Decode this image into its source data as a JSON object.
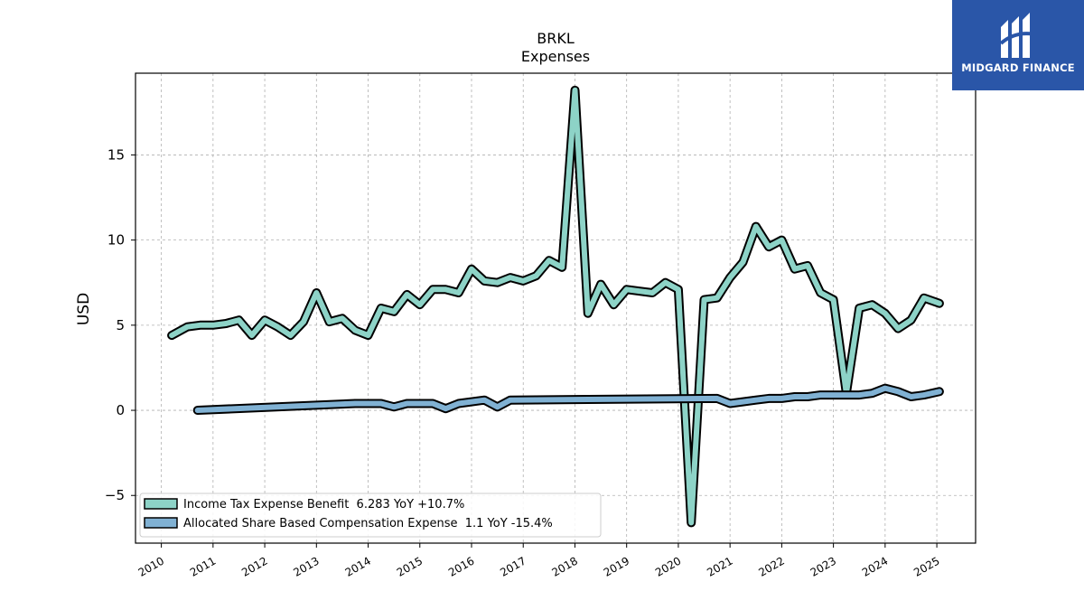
{
  "logo": {
    "text": "MIDGARD FINANCE"
  },
  "colors": {
    "income_tax": "#8dd3c7",
    "share_comp": "#80b1d3",
    "outline": "#000000",
    "grid": "#b0b0b0",
    "logo_bg": "#2a56a8"
  },
  "chart_data": {
    "type": "line",
    "title": "BRKL",
    "subtitle": "Expenses",
    "ylabel": "USD",
    "xlim": [
      2009.5,
      2025.75
    ],
    "ylim": [
      -7.8,
      19.8
    ],
    "yticks": [
      -5,
      0,
      5,
      10,
      15
    ],
    "xticks": [
      2010,
      2011,
      2012,
      2013,
      2014,
      2015,
      2016,
      2017,
      2018,
      2019,
      2020,
      2021,
      2022,
      2023,
      2024,
      2025
    ],
    "grid": true,
    "legend_position": "lower-left",
    "series": [
      {
        "name": "Income Tax Expense Benefit  6.283 YoY +10.7%",
        "x": [
          2010.2,
          2010.5,
          2010.75,
          2011.0,
          2011.25,
          2011.5,
          2011.75,
          2012.0,
          2012.25,
          2012.5,
          2012.75,
          2013.0,
          2013.25,
          2013.5,
          2013.75,
          2014.0,
          2014.25,
          2014.5,
          2014.75,
          2015.0,
          2015.25,
          2015.5,
          2015.75,
          2016.0,
          2016.25,
          2016.5,
          2016.75,
          2017.0,
          2017.25,
          2017.5,
          2017.75,
          2018.0,
          2018.25,
          2018.5,
          2018.75,
          2019.0,
          2019.25,
          2019.5,
          2019.75,
          2020.0,
          2020.25,
          2020.5,
          2020.75,
          2021.0,
          2021.25,
          2021.5,
          2021.75,
          2022.0,
          2022.25,
          2022.5,
          2022.75,
          2023.0,
          2023.25,
          2023.5,
          2023.75,
          2024.0,
          2024.25,
          2024.5,
          2024.75,
          2025.05
        ],
        "values": [
          4.4,
          4.9,
          5.0,
          5.0,
          5.1,
          5.3,
          4.4,
          5.3,
          4.9,
          4.4,
          5.2,
          6.9,
          5.2,
          5.4,
          4.7,
          4.4,
          6.0,
          5.8,
          6.8,
          6.2,
          7.1,
          7.1,
          6.9,
          8.3,
          7.6,
          7.5,
          7.8,
          7.6,
          7.9,
          8.8,
          8.4,
          18.8,
          5.7,
          7.4,
          6.2,
          7.1,
          7.0,
          6.9,
          7.5,
          7.1,
          -6.6,
          6.5,
          6.6,
          7.8,
          8.7,
          10.8,
          9.6,
          10.0,
          8.3,
          8.5,
          6.9,
          6.5,
          1.0,
          6.0,
          6.2,
          5.7,
          4.8,
          5.3,
          6.6,
          6.283
        ]
      },
      {
        "name": "Allocated Share Based Compensation Expense  1.1 YoY -15.4%",
        "x": [
          2010.7,
          2013.75,
          2014.25,
          2014.5,
          2014.75,
          2015.25,
          2015.5,
          2015.75,
          2016.25,
          2016.5,
          2016.75,
          2020.75,
          2021.0,
          2021.5,
          2021.75,
          2022.0,
          2022.25,
          2022.5,
          2022.75,
          2023.0,
          2023.5,
          2023.75,
          2024.0,
          2024.25,
          2024.5,
          2024.75,
          2025.05
        ],
        "values": [
          0.0,
          0.4,
          0.4,
          0.2,
          0.4,
          0.4,
          0.1,
          0.4,
          0.6,
          0.2,
          0.6,
          0.7,
          0.4,
          0.6,
          0.7,
          0.7,
          0.8,
          0.8,
          0.9,
          0.9,
          0.9,
          1.0,
          1.3,
          1.1,
          0.8,
          0.9,
          1.1
        ]
      }
    ]
  }
}
